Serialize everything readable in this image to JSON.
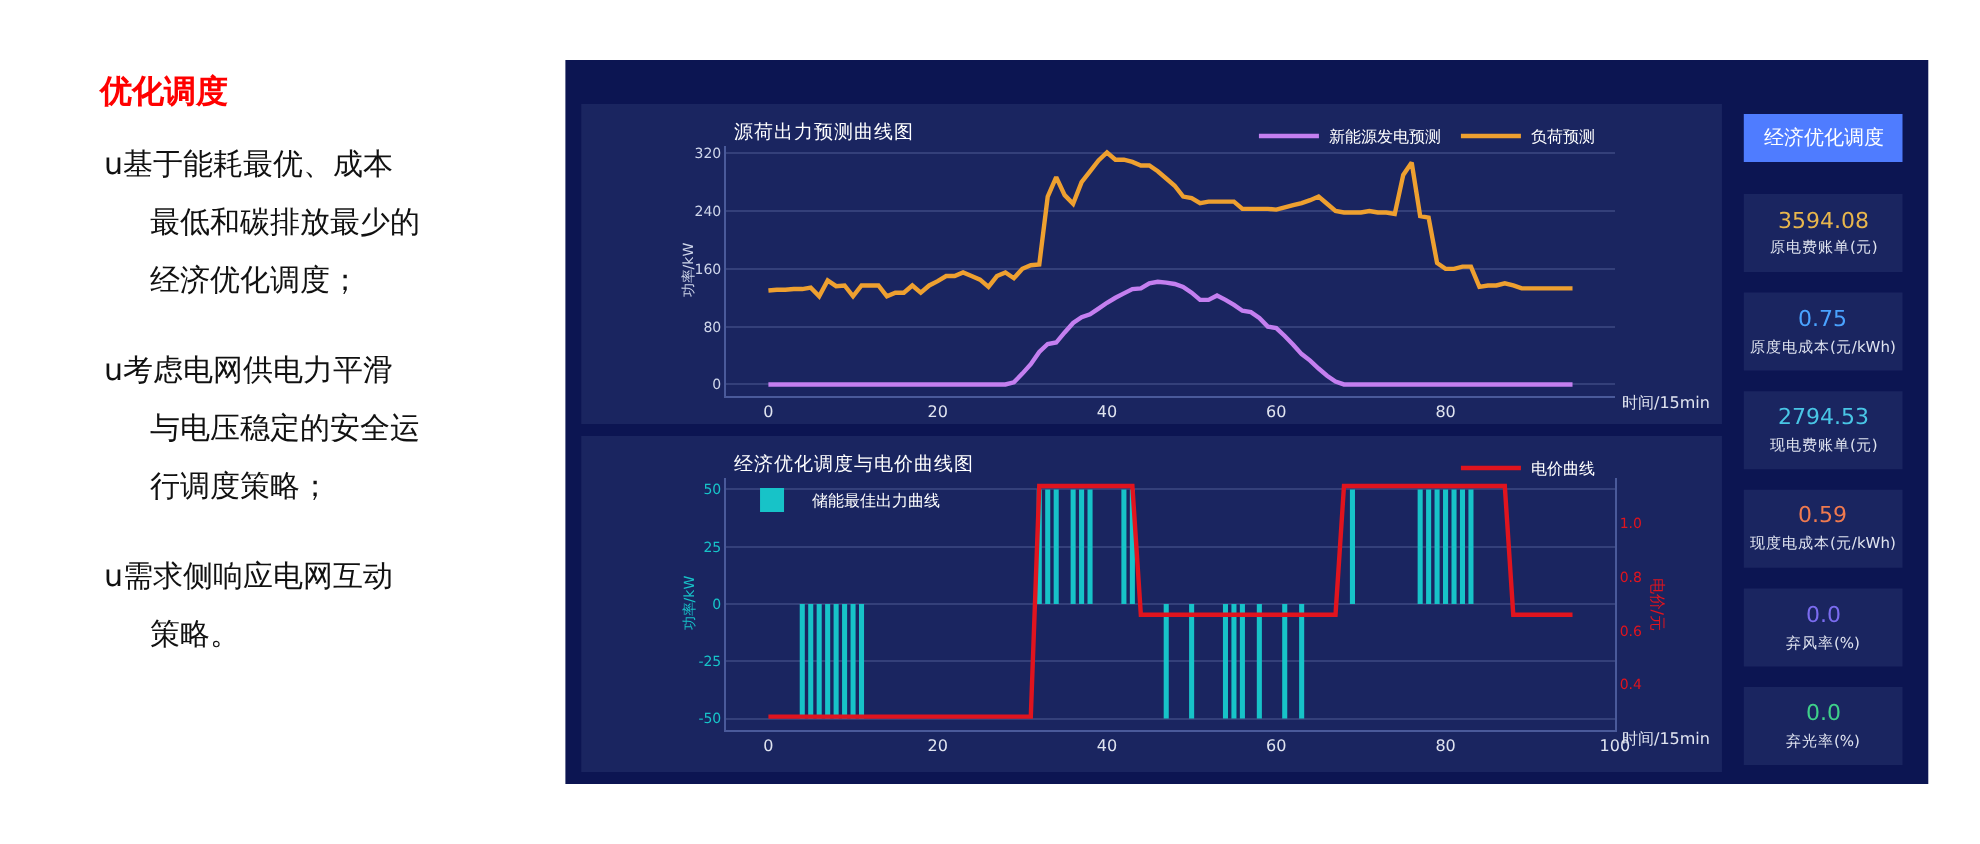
{
  "chart_data": [
    {
      "type": "other",
      "title": "优化调度",
      "annotations": [
        "u基于能耗最优、成本最低和碳排放最少的经济优化调度；",
        "u考虑电网供电力平滑与电压稳定的安全运行调度策略；",
        "u需求侧响应电网互动策略。"
      ]
    },
    {
      "type": "line",
      "title": "源荷出力预测曲线图",
      "xlabel": "时间/15min",
      "ylabel": "功率/kW",
      "x": [
        0,
        1,
        2,
        3,
        4,
        5,
        6,
        7,
        8,
        9,
        10,
        11,
        12,
        13,
        14,
        15,
        16,
        17,
        18,
        19,
        20,
        21,
        22,
        23,
        24,
        25,
        26,
        27,
        28,
        29,
        30,
        31,
        32,
        33,
        34,
        35,
        36,
        37,
        38,
        39,
        40,
        41,
        42,
        43,
        44,
        45,
        46,
        47,
        48,
        49,
        50,
        51,
        52,
        53,
        54,
        55,
        56,
        57,
        58,
        59,
        60,
        61,
        62,
        63,
        64,
        65,
        66,
        67,
        68,
        69,
        70,
        71,
        72,
        73,
        74,
        75,
        76,
        77,
        78,
        79,
        80,
        81,
        82,
        83,
        84,
        85,
        86,
        87,
        88,
        89,
        90,
        91,
        92,
        93,
        94,
        95
      ],
      "series": [
        {
          "name": "新能源发电预测",
          "color": "#c47ff0",
          "values": [
            0,
            0,
            0,
            0,
            0,
            0,
            0,
            0,
            0,
            0,
            0,
            0,
            0,
            0,
            0,
            0,
            0,
            0,
            0,
            0,
            0,
            0,
            0,
            0,
            0,
            0,
            0,
            0,
            0,
            3,
            15,
            28,
            45,
            56,
            58,
            72,
            85,
            93,
            97,
            105,
            113,
            120,
            126,
            132,
            133,
            140,
            142,
            141,
            139,
            135,
            127,
            117,
            117,
            123,
            117,
            110,
            102,
            100,
            92,
            80,
            78,
            67,
            55,
            42,
            33,
            22,
            12,
            4,
            0,
            0,
            0,
            0,
            0,
            0,
            0,
            0,
            0,
            0,
            0,
            0,
            0,
            0,
            0,
            0,
            0,
            0,
            0,
            0,
            0,
            0,
            0,
            0,
            0,
            0,
            0,
            0
          ]
        },
        {
          "name": "负荷预测",
          "color": "#eea030",
          "values": [
            130,
            131,
            131,
            132,
            132,
            134,
            122,
            144,
            136,
            137,
            122,
            137,
            137,
            137,
            122,
            127,
            127,
            137,
            127,
            137,
            143,
            150,
            150,
            155,
            150,
            145,
            135,
            150,
            155,
            147,
            160,
            165,
            166,
            260,
            287,
            262,
            250,
            280,
            295,
            310,
            321,
            311,
            311,
            308,
            303,
            303,
            295,
            285,
            275,
            260,
            258,
            251,
            253,
            253,
            253,
            253,
            243,
            243,
            243,
            243,
            242,
            245,
            248,
            251,
            255,
            260,
            250,
            240,
            238,
            238,
            238,
            240,
            238,
            238,
            236,
            290,
            307,
            233,
            231,
            168,
            160,
            160,
            163,
            163,
            135,
            137,
            137,
            140,
            137,
            133,
            133,
            133,
            133,
            133,
            133,
            133
          ]
        }
      ],
      "xlim": [
        -5,
        100
      ],
      "xticks": [
        0,
        20,
        40,
        60,
        80
      ],
      "ylim": [
        -16,
        330
      ],
      "yticks": [
        0,
        80,
        160,
        240,
        320
      ],
      "grid": "y",
      "legend": "top right",
      "marker": "none",
      "line_style": "solid"
    },
    {
      "type": "bar",
      "title": "经济优化调度与电价曲线图",
      "xlabel": "时间/15min",
      "ylabel": "功率/kW",
      "y2label": "电价/元",
      "x": [
        0,
        1,
        2,
        3,
        4,
        5,
        6,
        7,
        8,
        9,
        10,
        11,
        12,
        13,
        14,
        15,
        16,
        17,
        18,
        19,
        20,
        21,
        22,
        23,
        24,
        25,
        26,
        27,
        28,
        29,
        30,
        31,
        32,
        33,
        34,
        35,
        36,
        37,
        38,
        39,
        40,
        41,
        42,
        43,
        44,
        45,
        46,
        47,
        48,
        49,
        50,
        51,
        52,
        53,
        54,
        55,
        56,
        57,
        58,
        59,
        60,
        61,
        62,
        63,
        64,
        65,
        66,
        67,
        68,
        69,
        70,
        71,
        72,
        73,
        74,
        75,
        76,
        77,
        78,
        79,
        80,
        81,
        82,
        83,
        84,
        85,
        86,
        87,
        88,
        89,
        90,
        91,
        92,
        93,
        94,
        95
      ],
      "series": [
        {
          "name": "储能最佳出力曲线",
          "color": "#17c3c8",
          "values": [
            0,
            0,
            0,
            0,
            -50,
            -50,
            -50,
            -50,
            -50,
            -50,
            -50,
            -50,
            0,
            0,
            0,
            0,
            0,
            0,
            0,
            0,
            0,
            0,
            0,
            0,
            0,
            0,
            0,
            0,
            0,
            0,
            0,
            0,
            50,
            50,
            50,
            0,
            50,
            50,
            50,
            0,
            0,
            0,
            50,
            50,
            0,
            0,
            0,
            -50,
            0,
            0,
            -50,
            0,
            0,
            0,
            -50,
            -50,
            -50,
            0,
            -50,
            0,
            0,
            -50,
            0,
            -50,
            0,
            0,
            0,
            0,
            0,
            50,
            0,
            0,
            0,
            0,
            0,
            0,
            0,
            50,
            50,
            50,
            50,
            50,
            50,
            50,
            0,
            0,
            0,
            0,
            0,
            0,
            0,
            0,
            0,
            0,
            0,
            0
          ]
        },
        {
          "name": "电价曲线",
          "type": "line",
          "axis": "y2",
          "color": "#e0141e",
          "values": [
            0.28,
            0.28,
            0.28,
            0.28,
            0.28,
            0.28,
            0.28,
            0.28,
            0.28,
            0.28,
            0.28,
            0.28,
            0.28,
            0.28,
            0.28,
            0.28,
            0.28,
            0.28,
            0.28,
            0.28,
            0.28,
            0.28,
            0.28,
            0.28,
            0.28,
            0.28,
            0.28,
            0.28,
            0.28,
            0.28,
            0.28,
            0.28,
            1.14,
            1.14,
            1.14,
            1.14,
            1.14,
            1.14,
            1.14,
            1.14,
            1.14,
            1.14,
            1.14,
            1.14,
            0.66,
            0.66,
            0.66,
            0.66,
            0.66,
            0.66,
            0.66,
            0.66,
            0.66,
            0.66,
            0.66,
            0.66,
            0.66,
            0.66,
            0.66,
            0.66,
            0.66,
            0.66,
            0.66,
            0.66,
            0.66,
            0.66,
            0.66,
            0.66,
            1.14,
            1.14,
            1.14,
            1.14,
            1.14,
            1.14,
            1.14,
            1.14,
            1.14,
            1.14,
            1.14,
            1.14,
            1.14,
            1.14,
            1.14,
            1.14,
            1.14,
            1.14,
            1.14,
            1.14,
            0.66,
            0.66,
            0.66,
            0.66,
            0.66,
            0.66,
            0.66,
            0.66
          ]
        }
      ],
      "xlim": [
        -5,
        100
      ],
      "xticks": [
        0,
        20,
        40,
        60,
        80,
        100
      ],
      "ylim": [
        -55,
        55
      ],
      "yticks": [
        -50,
        -25,
        0,
        25,
        50
      ],
      "y2lim": [
        0.23,
        1.17
      ],
      "y2ticks": [
        0.4,
        0.6,
        0.8,
        {
          "value": 1.0,
          "label": "1.0"
        }
      ],
      "grid": "y",
      "legend": "top",
      "marker": "none",
      "line_style": "solid"
    },
    {
      "type": "other",
      "annotations": [
        "经济优化调度",
        "3594.08",
        "原电费账单(元)",
        "0.75",
        "原度电成本(元/kWh)",
        "2794.53",
        "现电费账单(元)",
        "0.59",
        "现度电成本(元/kWh)",
        "0.0",
        "弃风率(%)",
        "0.0",
        "弃光率(%)"
      ]
    }
  ]
}
